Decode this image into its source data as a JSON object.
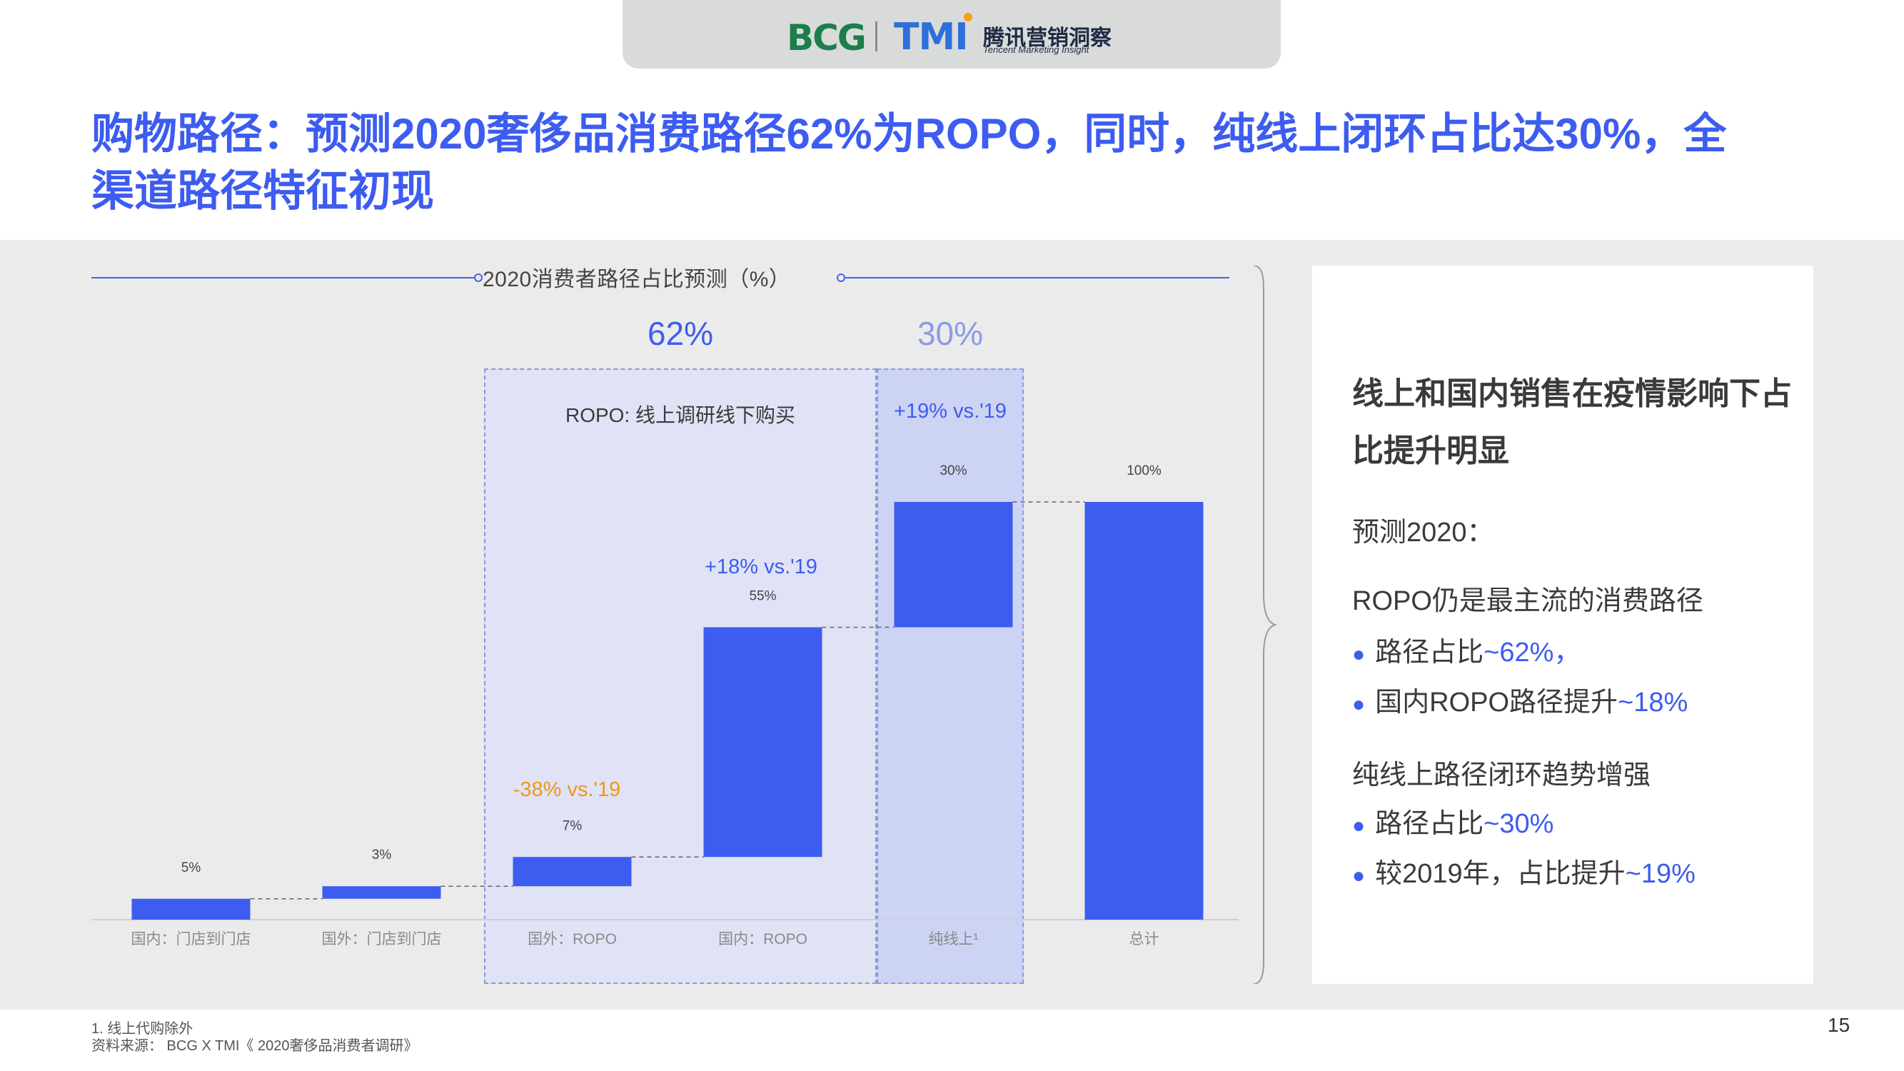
{
  "header": {
    "logo_bcg": "BCG",
    "logo_tmi": "TMI",
    "logo_cn": "腾讯营销洞察",
    "logo_en": "Tencent Marketing Insight"
  },
  "title": "购物路径：预测2020奢侈品消费路径62%为ROPO，同时，纯线上闭环占比达30%，全渠道路径特征初现",
  "chart_title": "2020消费者路径占比预测（%）",
  "zones": {
    "ropo_pct": "62%",
    "ropo_label": "ROPO: 线上调研线下购买",
    "online_pct": "30%"
  },
  "annotations": {
    "online_change": "+19% vs.'19",
    "domestic_ropo_change": "+18% vs.'19",
    "overseas_ropo_change": "-38% vs.'19"
  },
  "colors": {
    "bar": "#3d5cf0",
    "accent": "#3d5cf0",
    "ropo_zone": "#e0e3f5",
    "online_zone": "#cdd3f3",
    "negative": "#f0961a"
  },
  "chart_data": {
    "type": "waterfall",
    "title": "2020消费者路径占比预测（%）",
    "unit": "%",
    "categories": [
      "国内：门店到门店",
      "国外：门店到门店",
      "国外：ROPO",
      "国内：ROPO",
      "纯线上¹",
      "总计"
    ],
    "values": [
      5,
      3,
      7,
      55,
      30,
      100
    ],
    "labels": [
      "5%",
      "3%",
      "7%",
      "55%",
      "30%",
      "100%"
    ],
    "cumulative_end": [
      5,
      8,
      15,
      70,
      100,
      100
    ],
    "total_index": 5
  },
  "aside": {
    "heading": "线上和国内销售在疫情影响下占比提升明显",
    "forecast_label": "预测2020：",
    "section1_title": "ROPO仍是最主流的消费路径",
    "s1_b1_text": "路径占比",
    "s1_b1_value": "~62%，",
    "s1_b2_text": "国内ROPO路径提升",
    "s1_b2_value": "~18%",
    "section2_title": "纯线上路径闭环趋势增强",
    "s2_b1_text": "路径占比",
    "s2_b1_value": "~30%",
    "s2_b2_text": "较2019年，占比提升",
    "s2_b2_value": "~19%"
  },
  "footer": {
    "note": "1. 线上代购除外",
    "source": "资料来源： BCG X TMI《 2020奢侈品消费者调研》",
    "page": "15"
  }
}
